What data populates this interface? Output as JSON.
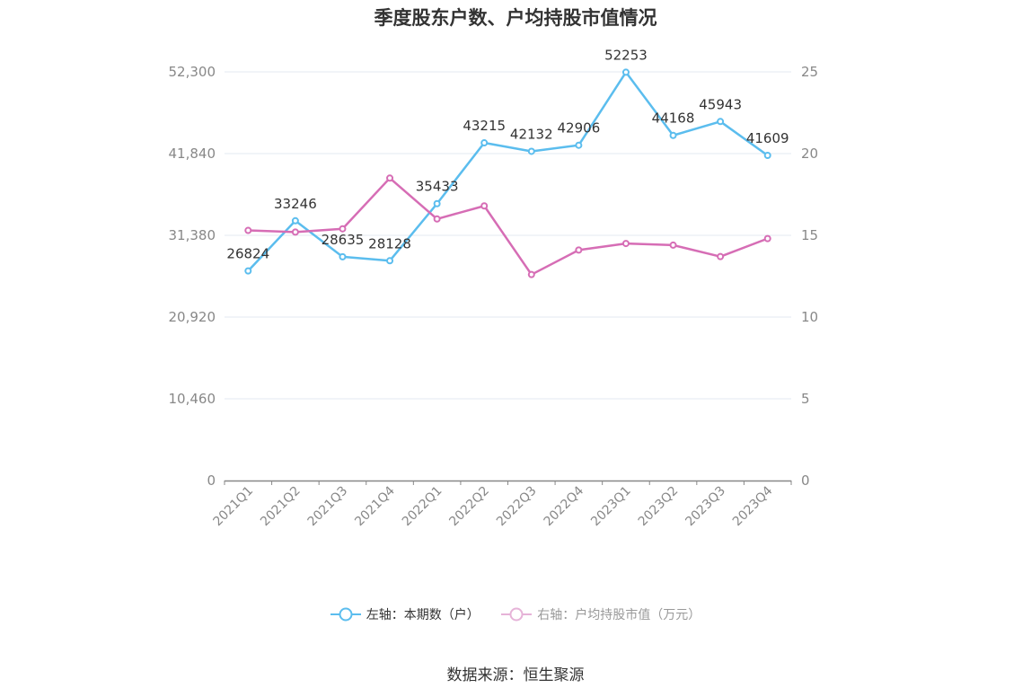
{
  "chart_data": {
    "type": "line",
    "title": "季度股东户数、户均持股市值情况",
    "categories": [
      "2021Q1",
      "2021Q2",
      "2021Q3",
      "2021Q4",
      "2022Q1",
      "2022Q2",
      "2022Q3",
      "2022Q4",
      "2023Q1",
      "2023Q2",
      "2023Q3",
      "2023Q4"
    ],
    "left_axis": {
      "ticks": [
        "0",
        "10,460",
        "20,920",
        "31,380",
        "41,840",
        "52,300"
      ],
      "ylim": [
        0,
        52300
      ]
    },
    "right_axis": {
      "ticks": [
        "0",
        "5",
        "10",
        "15",
        "20",
        "25"
      ],
      "ylim": [
        0,
        25
      ]
    },
    "series": [
      {
        "name": "左轴：本期数（户）",
        "axis": "left",
        "color": "#5bbdee",
        "values": [
          26824,
          33246,
          28635,
          28128,
          35433,
          43215,
          42132,
          42906,
          52253,
          44168,
          45943,
          41609
        ],
        "show_labels": true
      },
      {
        "name": "右轴：户均持股市值（万元）",
        "axis": "right",
        "color": "#d66db5",
        "values": [
          15.3,
          15.2,
          15.4,
          18.5,
          16.0,
          16.8,
          12.6,
          14.1,
          14.5,
          14.4,
          13.7,
          14.8
        ],
        "show_labels": false
      }
    ],
    "grid": true,
    "legend_position": "bottom"
  },
  "source": "数据来源：恒生聚源"
}
